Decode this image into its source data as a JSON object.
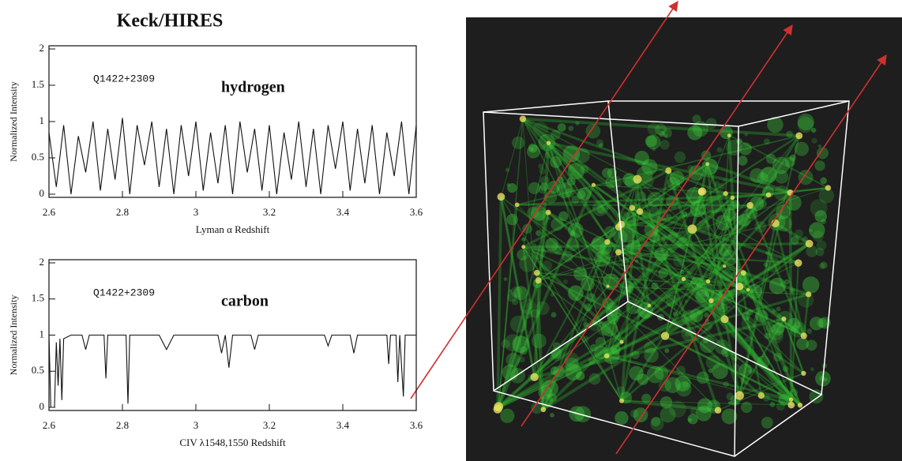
{
  "title": "Keck/HIRES",
  "chart_data": [
    {
      "type": "line",
      "ylabel": "Normalized Intensity",
      "xlabel": "Lyman α Redshift",
      "annotations": [
        "Q1422+2309",
        "hydrogen"
      ],
      "xlim": [
        2.6,
        3.6
      ],
      "ylim": [
        0,
        2
      ],
      "xticks": [
        2.6,
        2.8,
        3,
        3.2,
        3.4,
        3.6
      ],
      "yticks": [
        0,
        0.5,
        1,
        1.5,
        2
      ],
      "color": "#111111",
      "x": [
        2.6,
        2.62,
        2.64,
        2.66,
        2.68,
        2.7,
        2.72,
        2.74,
        2.76,
        2.78,
        2.8,
        2.82,
        2.84,
        2.86,
        2.88,
        2.9,
        2.92,
        2.94,
        2.96,
        2.98,
        3,
        3.02,
        3.04,
        3.06,
        3.08,
        3.1,
        3.12,
        3.14,
        3.16,
        3.18,
        3.2,
        3.22,
        3.24,
        3.26,
        3.28,
        3.3,
        3.32,
        3.34,
        3.36,
        3.38,
        3.4,
        3.42,
        3.44,
        3.46,
        3.48,
        3.5,
        3.52,
        3.54,
        3.56,
        3.58,
        3.6
      ],
      "values": [
        0.85,
        0.1,
        0.95,
        0,
        0.8,
        0.3,
        1,
        0.05,
        0.9,
        0.2,
        1.05,
        0,
        0.95,
        0.4,
        1,
        0.1,
        0.9,
        0,
        0.95,
        0.25,
        1,
        0.05,
        0.85,
        0.15,
        0.95,
        0,
        1,
        0.3,
        0.9,
        0.05,
        0.95,
        0,
        0.85,
        0.2,
        1,
        0.1,
        0.9,
        0,
        0.95,
        0.35,
        1,
        0.05,
        0.9,
        0.15,
        0.95,
        0,
        0.85,
        0.25,
        1,
        0,
        0.95
      ]
    },
    {
      "type": "line",
      "ylabel": "Normalized Intensity",
      "xlabel": "CIV λ1548,1550 Redshift",
      "annotations": [
        "Q1422+2309",
        "carbon"
      ],
      "xlim": [
        2.6,
        3.6
      ],
      "ylim": [
        0,
        2
      ],
      "xticks": [
        2.6,
        2.8,
        3,
        3.2,
        3.4,
        3.6
      ],
      "yticks": [
        0,
        0.5,
        1,
        1.5,
        2
      ],
      "color": "#111111",
      "x": [
        2.6,
        2.605,
        2.615,
        2.62,
        2.625,
        2.63,
        2.635,
        2.64,
        2.66,
        2.69,
        2.7,
        2.71,
        2.75,
        2.755,
        2.76,
        2.81,
        2.815,
        2.82,
        2.9,
        2.92,
        2.94,
        3.06,
        3.07,
        3.08,
        3.09,
        3.1,
        3.15,
        3.16,
        3.17,
        3.35,
        3.36,
        3.37,
        3.42,
        3.43,
        3.44,
        3.52,
        3.525,
        3.53,
        3.545,
        3.55,
        3.555,
        3.565,
        3.57,
        3.6
      ],
      "values": [
        1,
        0,
        0,
        0.9,
        0.3,
        0.95,
        0.1,
        0.95,
        1,
        1,
        0.8,
        1,
        1,
        0.4,
        1,
        1,
        0.05,
        1,
        1,
        0.8,
        1,
        1,
        0.75,
        1,
        0.55,
        1,
        1,
        0.8,
        1,
        1,
        0.85,
        1,
        1,
        0.75,
        1,
        1,
        0.6,
        1,
        1,
        0.35,
        1,
        0.15,
        1,
        1
      ]
    }
  ]
}
